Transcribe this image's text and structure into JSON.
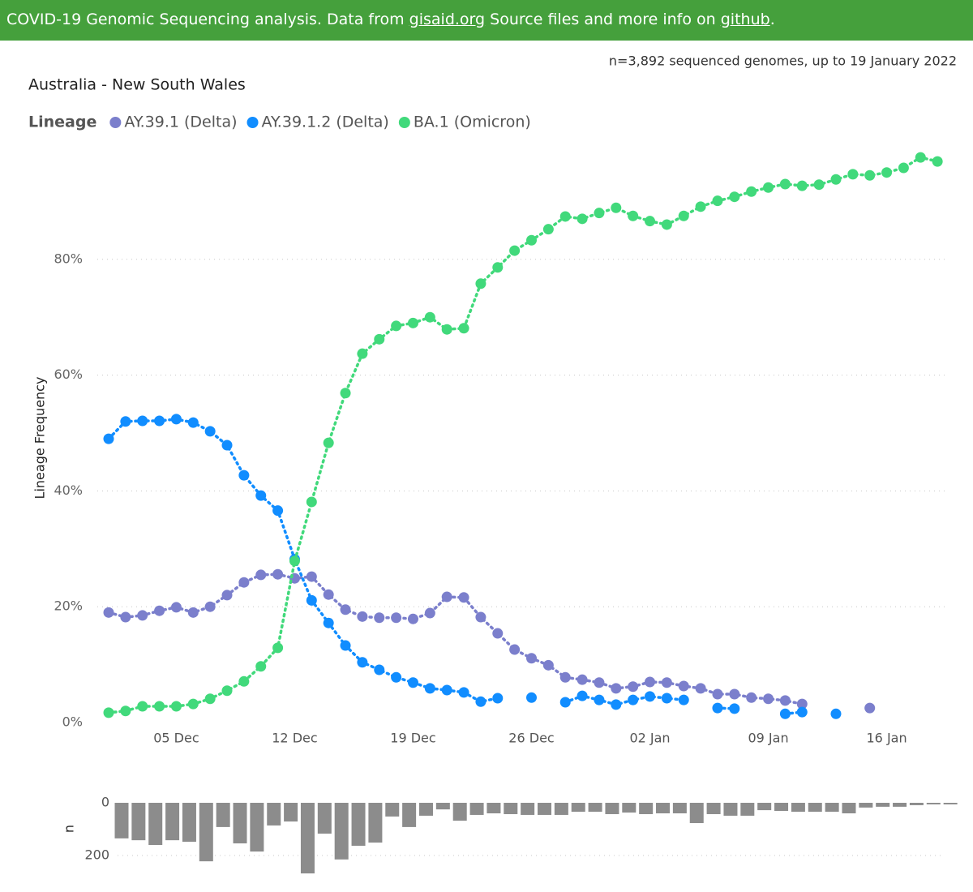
{
  "header": {
    "text1": "COVID-19 Genomic Sequencing analysis. Data from ",
    "link1": "gisaid.org",
    "text2": " Source files and more info on ",
    "link2": "github",
    "text3": "."
  },
  "chart_data": [
    {
      "type": "line",
      "title": "Australia - New South Wales",
      "subtitle": "n=3,892 sequenced genomes, up to 19 January 2022",
      "legend_title": "Lineage",
      "legend": "top-left",
      "ylabel": "Lineage Frequency",
      "grid": true,
      "categories": [
        null,
        null,
        null,
        null,
        "05 Dec",
        null,
        null,
        null,
        null,
        null,
        null,
        "12 Dec",
        null,
        null,
        null,
        null,
        null,
        null,
        "19 Dec",
        null,
        null,
        null,
        null,
        null,
        null,
        "26 Dec",
        null,
        null,
        null,
        null,
        null,
        null,
        "02 Jan",
        null,
        null,
        null,
        null,
        null,
        null,
        "09 Jan",
        null,
        null,
        null,
        null,
        null,
        null,
        "16 Jan",
        null,
        null,
        null
      ],
      "ylim": [
        0,
        100
      ],
      "yticks": [
        {
          "value": 0,
          "label": "0%"
        },
        {
          "value": 20,
          "label": "20%"
        },
        {
          "value": 40,
          "label": "40%"
        },
        {
          "value": 60,
          "label": "60%"
        },
        {
          "value": 80,
          "label": "80%"
        }
      ],
      "series": [
        {
          "name": "AY.39.1 (Delta)",
          "color": "#7b7fcc",
          "values": [
            19.0,
            18.2,
            18.5,
            19.3,
            19.9,
            19.0,
            20.0,
            22.0,
            24.2,
            25.5,
            25.6,
            24.9,
            25.2,
            22.1,
            19.5,
            18.3,
            18.1,
            18.1,
            17.9,
            18.9,
            21.7,
            21.6,
            18.2,
            15.4,
            12.6,
            11.1,
            9.9,
            7.8,
            7.4,
            6.9,
            5.9,
            6.2,
            7.0,
            6.9,
            6.3,
            5.9,
            4.9,
            4.9,
            4.3,
            4.1,
            3.8,
            3.2,
            null,
            null,
            null,
            2.5,
            null,
            null,
            null,
            null
          ]
        },
        {
          "name": "AY.39.1.2 (Delta)",
          "color": "#118dff",
          "values": [
            49.0,
            52.0,
            52.1,
            52.1,
            52.4,
            51.8,
            50.3,
            47.9,
            42.7,
            39.2,
            36.6,
            28.2,
            21.1,
            17.2,
            13.3,
            10.4,
            9.1,
            7.8,
            6.9,
            5.9,
            5.6,
            5.2,
            3.6,
            4.2,
            null,
            4.3,
            null,
            3.5,
            4.6,
            3.9,
            3.1,
            3.9,
            4.5,
            4.2,
            3.9,
            null,
            2.5,
            2.4,
            null,
            null,
            1.5,
            1.8,
            null,
            1.5,
            null,
            null,
            null,
            null,
            null,
            null
          ]
        },
        {
          "name": "BA.1 (Omicron)",
          "color": "#41d97b",
          "values": [
            1.7,
            2.0,
            2.8,
            2.8,
            2.8,
            3.2,
            4.1,
            5.5,
            7.1,
            9.7,
            12.9,
            27.9,
            38.1,
            48.3,
            56.9,
            63.7,
            66.2,
            68.5,
            69.0,
            70.0,
            67.9,
            68.1,
            75.8,
            78.6,
            81.5,
            83.3,
            85.2,
            87.4,
            87.0,
            88.0,
            88.9,
            87.5,
            86.6,
            86.0,
            87.5,
            89.1,
            90.1,
            90.8,
            91.7,
            92.4,
            93.0,
            92.7,
            92.9,
            93.8,
            94.7,
            94.5,
            95.0,
            95.8,
            97.6,
            96.9
          ]
        }
      ]
    },
    {
      "type": "bar",
      "ylabel": "n",
      "color": "#8c8c8c",
      "inverted": true,
      "grid": true,
      "ylim": [
        0,
        280
      ],
      "yticks": [
        0,
        200
      ],
      "values": [
        135,
        142,
        160,
        142,
        148,
        222,
        92,
        154,
        185,
        86,
        71,
        268,
        117,
        215,
        163,
        151,
        52,
        92,
        49,
        25,
        68,
        46,
        40,
        43,
        46,
        46,
        46,
        34,
        34,
        43,
        37,
        43,
        40,
        40,
        77,
        43,
        49,
        49,
        28,
        31,
        34,
        34,
        34,
        40,
        18,
        15,
        15,
        9,
        6,
        6
      ]
    }
  ]
}
